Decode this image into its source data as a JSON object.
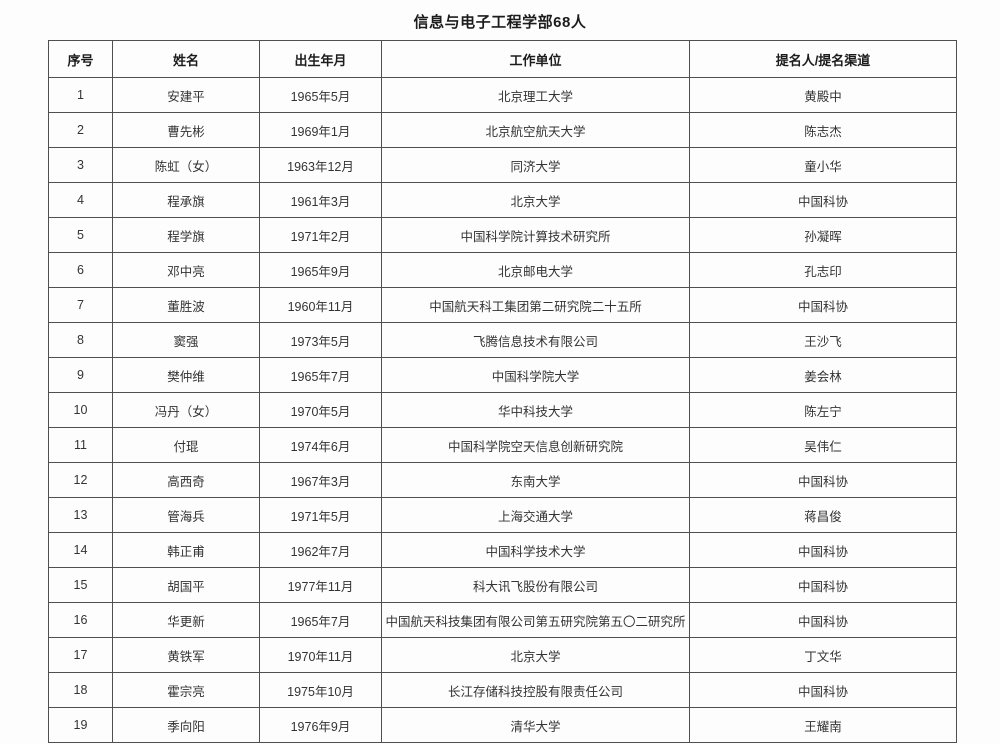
{
  "title": "信息与电子工程学部68人",
  "table": {
    "headers": [
      "序号",
      "姓名",
      "出生年月",
      "工作单位",
      "提名人/提名渠道"
    ],
    "column_keys": [
      "index",
      "name",
      "birth_date",
      "work_unit",
      "nominator"
    ],
    "rows": [
      {
        "index": "1",
        "name": "安建平",
        "birth_date": "1965年5月",
        "work_unit": "北京理工大学",
        "nominator": "黄殿中"
      },
      {
        "index": "2",
        "name": "曹先彬",
        "birth_date": "1969年1月",
        "work_unit": "北京航空航天大学",
        "nominator": "陈志杰"
      },
      {
        "index": "3",
        "name": "陈虹（女）",
        "birth_date": "1963年12月",
        "work_unit": "同济大学",
        "nominator": "童小华"
      },
      {
        "index": "4",
        "name": "程承旗",
        "birth_date": "1961年3月",
        "work_unit": "北京大学",
        "nominator": "中国科协"
      },
      {
        "index": "5",
        "name": "程学旗",
        "birth_date": "1971年2月",
        "work_unit": "中国科学院计算技术研究所",
        "nominator": "孙凝晖"
      },
      {
        "index": "6",
        "name": "邓中亮",
        "birth_date": "1965年9月",
        "work_unit": "北京邮电大学",
        "nominator": "孔志印"
      },
      {
        "index": "7",
        "name": "董胜波",
        "birth_date": "1960年11月",
        "work_unit": "中国航天科工集团第二研究院二十五所",
        "nominator": "中国科协"
      },
      {
        "index": "8",
        "name": "窦强",
        "birth_date": "1973年5月",
        "work_unit": "飞腾信息技术有限公司",
        "nominator": "王沙飞"
      },
      {
        "index": "9",
        "name": "樊仲维",
        "birth_date": "1965年7月",
        "work_unit": "中国科学院大学",
        "nominator": "姜会林"
      },
      {
        "index": "10",
        "name": "冯丹（女）",
        "birth_date": "1970年5月",
        "work_unit": "华中科技大学",
        "nominator": "陈左宁"
      },
      {
        "index": "11",
        "name": "付琨",
        "birth_date": "1974年6月",
        "work_unit": "中国科学院空天信息创新研究院",
        "nominator": "吴伟仁"
      },
      {
        "index": "12",
        "name": "高西奇",
        "birth_date": "1967年3月",
        "work_unit": "东南大学",
        "nominator": "中国科协"
      },
      {
        "index": "13",
        "name": "管海兵",
        "birth_date": "1971年5月",
        "work_unit": "上海交通大学",
        "nominator": "蒋昌俊"
      },
      {
        "index": "14",
        "name": "韩正甫",
        "birth_date": "1962年7月",
        "work_unit": "中国科学技术大学",
        "nominator": "中国科协"
      },
      {
        "index": "15",
        "name": "胡国平",
        "birth_date": "1977年11月",
        "work_unit": "科大讯飞股份有限公司",
        "nominator": "中国科协"
      },
      {
        "index": "16",
        "name": "华更新",
        "birth_date": "1965年7月",
        "work_unit": "中国航天科技集团有限公司第五研究院第五〇二研究所",
        "nominator": "中国科协"
      },
      {
        "index": "17",
        "name": "黄铁军",
        "birth_date": "1970年11月",
        "work_unit": "北京大学",
        "nominator": "丁文华"
      },
      {
        "index": "18",
        "name": "霍宗亮",
        "birth_date": "1975年10月",
        "work_unit": "长江存储科技控股有限责任公司",
        "nominator": "中国科协"
      },
      {
        "index": "19",
        "name": "季向阳",
        "birth_date": "1976年9月",
        "work_unit": "清华大学",
        "nominator": "王耀南"
      }
    ]
  },
  "colors": {
    "page_background": "#fdfdfd",
    "border": "#4f4f4f",
    "title_text": "#1c1c1c",
    "cell_text": "#333333"
  }
}
